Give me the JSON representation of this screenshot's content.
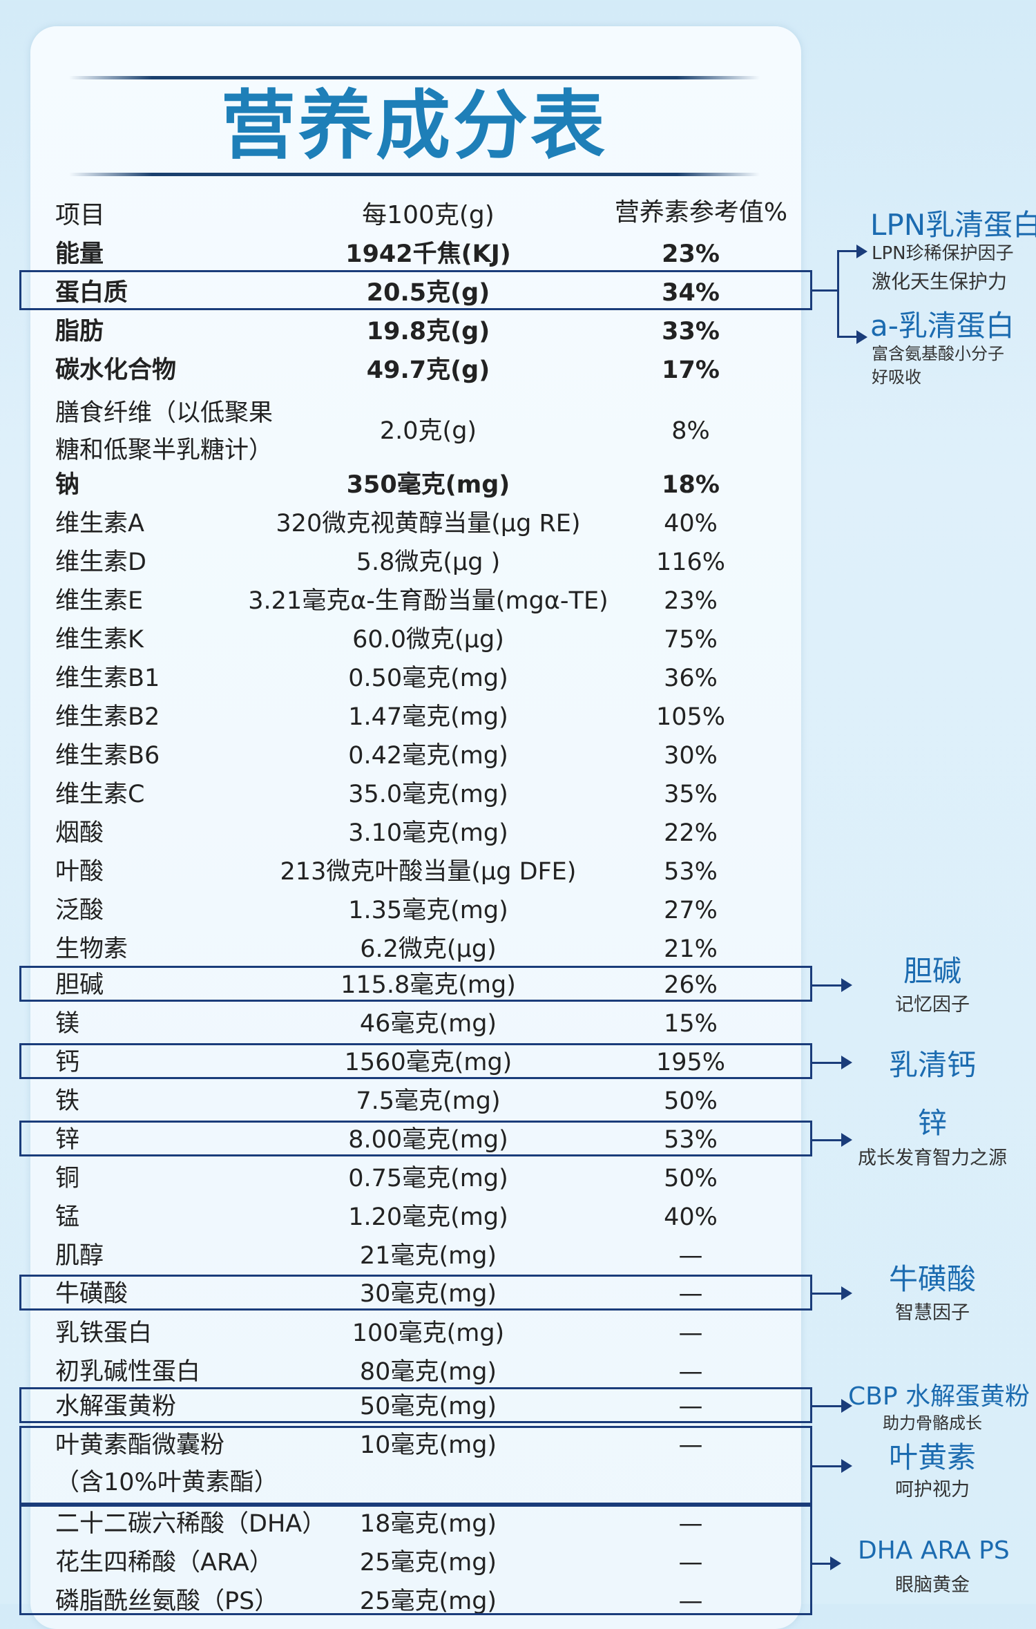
{
  "title": "营养成分表",
  "headers": {
    "name": "项目",
    "amount": "每100克(g)",
    "nrv": "营养素参考值%"
  },
  "rows": [
    {
      "name": "能量",
      "amount": "1942千焦(KJ)",
      "nrv": "23%",
      "bold": true
    },
    {
      "name": "蛋白质",
      "amount": "20.5克(g)",
      "nrv": "34%",
      "bold": true
    },
    {
      "name": "脂肪",
      "amount": "19.8克(g)",
      "nrv": "33%",
      "bold": true
    },
    {
      "name": "碳水化合物",
      "amount": "49.7克(g)",
      "nrv": "17%",
      "bold": true
    },
    {
      "name": "膳食纤维（以低聚果",
      "name2": "糖和低聚半乳糖计）",
      "amount": "2.0克(g)",
      "nrv": "8%"
    },
    {
      "name": "钠",
      "amount": "350毫克(mg)",
      "nrv": "18%",
      "bold": true
    },
    {
      "name": "维生素A",
      "amount": "320微克视黄醇当量(μg RE)",
      "nrv": "40%"
    },
    {
      "name": "维生素D",
      "amount": "5.8微克(μg )",
      "nrv": "116%"
    },
    {
      "name": "维生素E",
      "amount": "3.21毫克α-生育酚当量(mgα-TE)",
      "nrv": "23%"
    },
    {
      "name": "维生素K",
      "amount": "60.0微克(μg)",
      "nrv": "75%"
    },
    {
      "name": "维生素B1",
      "amount": "0.50毫克(mg)",
      "nrv": "36%"
    },
    {
      "name": "维生素B2",
      "amount": "1.47毫克(mg)",
      "nrv": "105%"
    },
    {
      "name": "维生素B6",
      "amount": "0.42毫克(mg)",
      "nrv": "30%"
    },
    {
      "name": "维生素C",
      "amount": "35.0毫克(mg)",
      "nrv": "35%"
    },
    {
      "name": "烟酸",
      "amount": "3.10毫克(mg)",
      "nrv": "22%"
    },
    {
      "name": "叶酸",
      "amount": "213微克叶酸当量(μg DFE)",
      "nrv": "53%"
    },
    {
      "name": "泛酸",
      "amount": "1.35毫克(mg)",
      "nrv": "27%"
    },
    {
      "name": "生物素",
      "amount": "6.2微克(μg)",
      "nrv": "21%"
    },
    {
      "name": "胆碱",
      "amount": "115.8毫克(mg)",
      "nrv": "26%"
    },
    {
      "name": "镁",
      "amount": "46毫克(mg)",
      "nrv": "15%"
    },
    {
      "name": "钙",
      "amount": "1560毫克(mg)",
      "nrv": "195%"
    },
    {
      "name": "铁",
      "amount": "7.5毫克(mg)",
      "nrv": "50%"
    },
    {
      "name": "锌",
      "amount": "8.00毫克(mg)",
      "nrv": "53%"
    },
    {
      "name": "铜",
      "amount": "0.75毫克(mg)",
      "nrv": "50%"
    },
    {
      "name": "锰",
      "amount": "1.20毫克(mg)",
      "nrv": "40%"
    },
    {
      "name": "肌醇",
      "amount": "21毫克(mg)",
      "nrv": "—"
    },
    {
      "name": "牛磺酸",
      "amount": "30毫克(mg)",
      "nrv": "—"
    },
    {
      "name": "乳铁蛋白",
      "amount": "100毫克(mg)",
      "nrv": "—"
    },
    {
      "name": "初乳碱性蛋白",
      "amount": "80毫克(mg)",
      "nrv": "—"
    },
    {
      "name": "水解蛋黄粉",
      "amount": "50毫克(mg)",
      "nrv": "—"
    },
    {
      "name": "叶黄素酯微囊粉",
      "name2": "（含10%叶黄素酯）",
      "amount": "10毫克(mg)",
      "nrv": "—"
    },
    {
      "name": "二十二碳六稀酸（DHA）",
      "amount": "18毫克(mg)",
      "nrv": "—"
    },
    {
      "name": "花生四稀酸（ARA）",
      "amount": "25毫克(mg)",
      "nrv": "—"
    },
    {
      "name": "磷脂酰丝氨酸（PS）",
      "amount": "25毫克(mg)",
      "nrv": "—"
    }
  ],
  "annotations": {
    "lpn": {
      "title": "LPN乳清蛋白",
      "sub1": "LPN珍稀保护因子",
      "sub2": "激化天生保护力"
    },
    "alpha": {
      "title": "a-乳清蛋白",
      "sub1": "富含氨基酸小分子",
      "sub2": "好吸收"
    },
    "choline": {
      "title": "胆碱",
      "sub": "记忆因子"
    },
    "calcium": {
      "title": "乳清钙"
    },
    "zinc": {
      "title": "锌",
      "sub": "成长发育智力之源"
    },
    "taurine": {
      "title": "牛磺酸",
      "sub": "智慧因子"
    },
    "cbp": {
      "title": "CBP 水解蛋黄粉",
      "sub": "助力骨骼成长"
    },
    "lutein": {
      "title": "叶黄素",
      "sub": "呵护视力"
    },
    "dha": {
      "title": "DHA  ARA  PS",
      "sub": "眼脑黄金"
    }
  }
}
